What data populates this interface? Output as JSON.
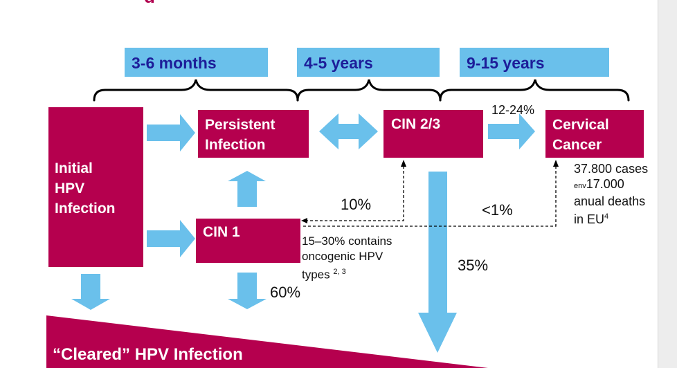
{
  "title_fragment": "g",
  "timeline": [
    "3-6 months",
    "4-5 years",
    "9-15 years"
  ],
  "boxes": {
    "initial": [
      "Initial",
      "HPV",
      "Infection"
    ],
    "persistent": [
      "Persistent",
      "Infection"
    ],
    "cin23": [
      "CIN 2/3"
    ],
    "cancer": [
      "Cervical",
      "Cancer"
    ],
    "cin1": [
      "CIN 1"
    ]
  },
  "rates": {
    "cin23_to_cancer": "12-24%",
    "cin1_to_cin23": "10%",
    "cin1_to_cancer": "<1%",
    "cin23_regress": "35%",
    "cin1_regress": "60%"
  },
  "notes": {
    "cin1_note": [
      "15–30% contains",
      "oncogenic HPV",
      "types"
    ],
    "cin1_note_ref": "2, 3",
    "cancer_stats": {
      "line1": "37.800 cases",
      "line2_prefix": "env",
      "line2": "17.000",
      "line3": "anual deaths",
      "line4": "in EU",
      "ref": "4"
    }
  },
  "cleared_label": "“Cleared” HPV Infection",
  "colors": {
    "magenta": "#b5004e",
    "blue": "#6ac0eb",
    "navy": "#1d1d99"
  }
}
